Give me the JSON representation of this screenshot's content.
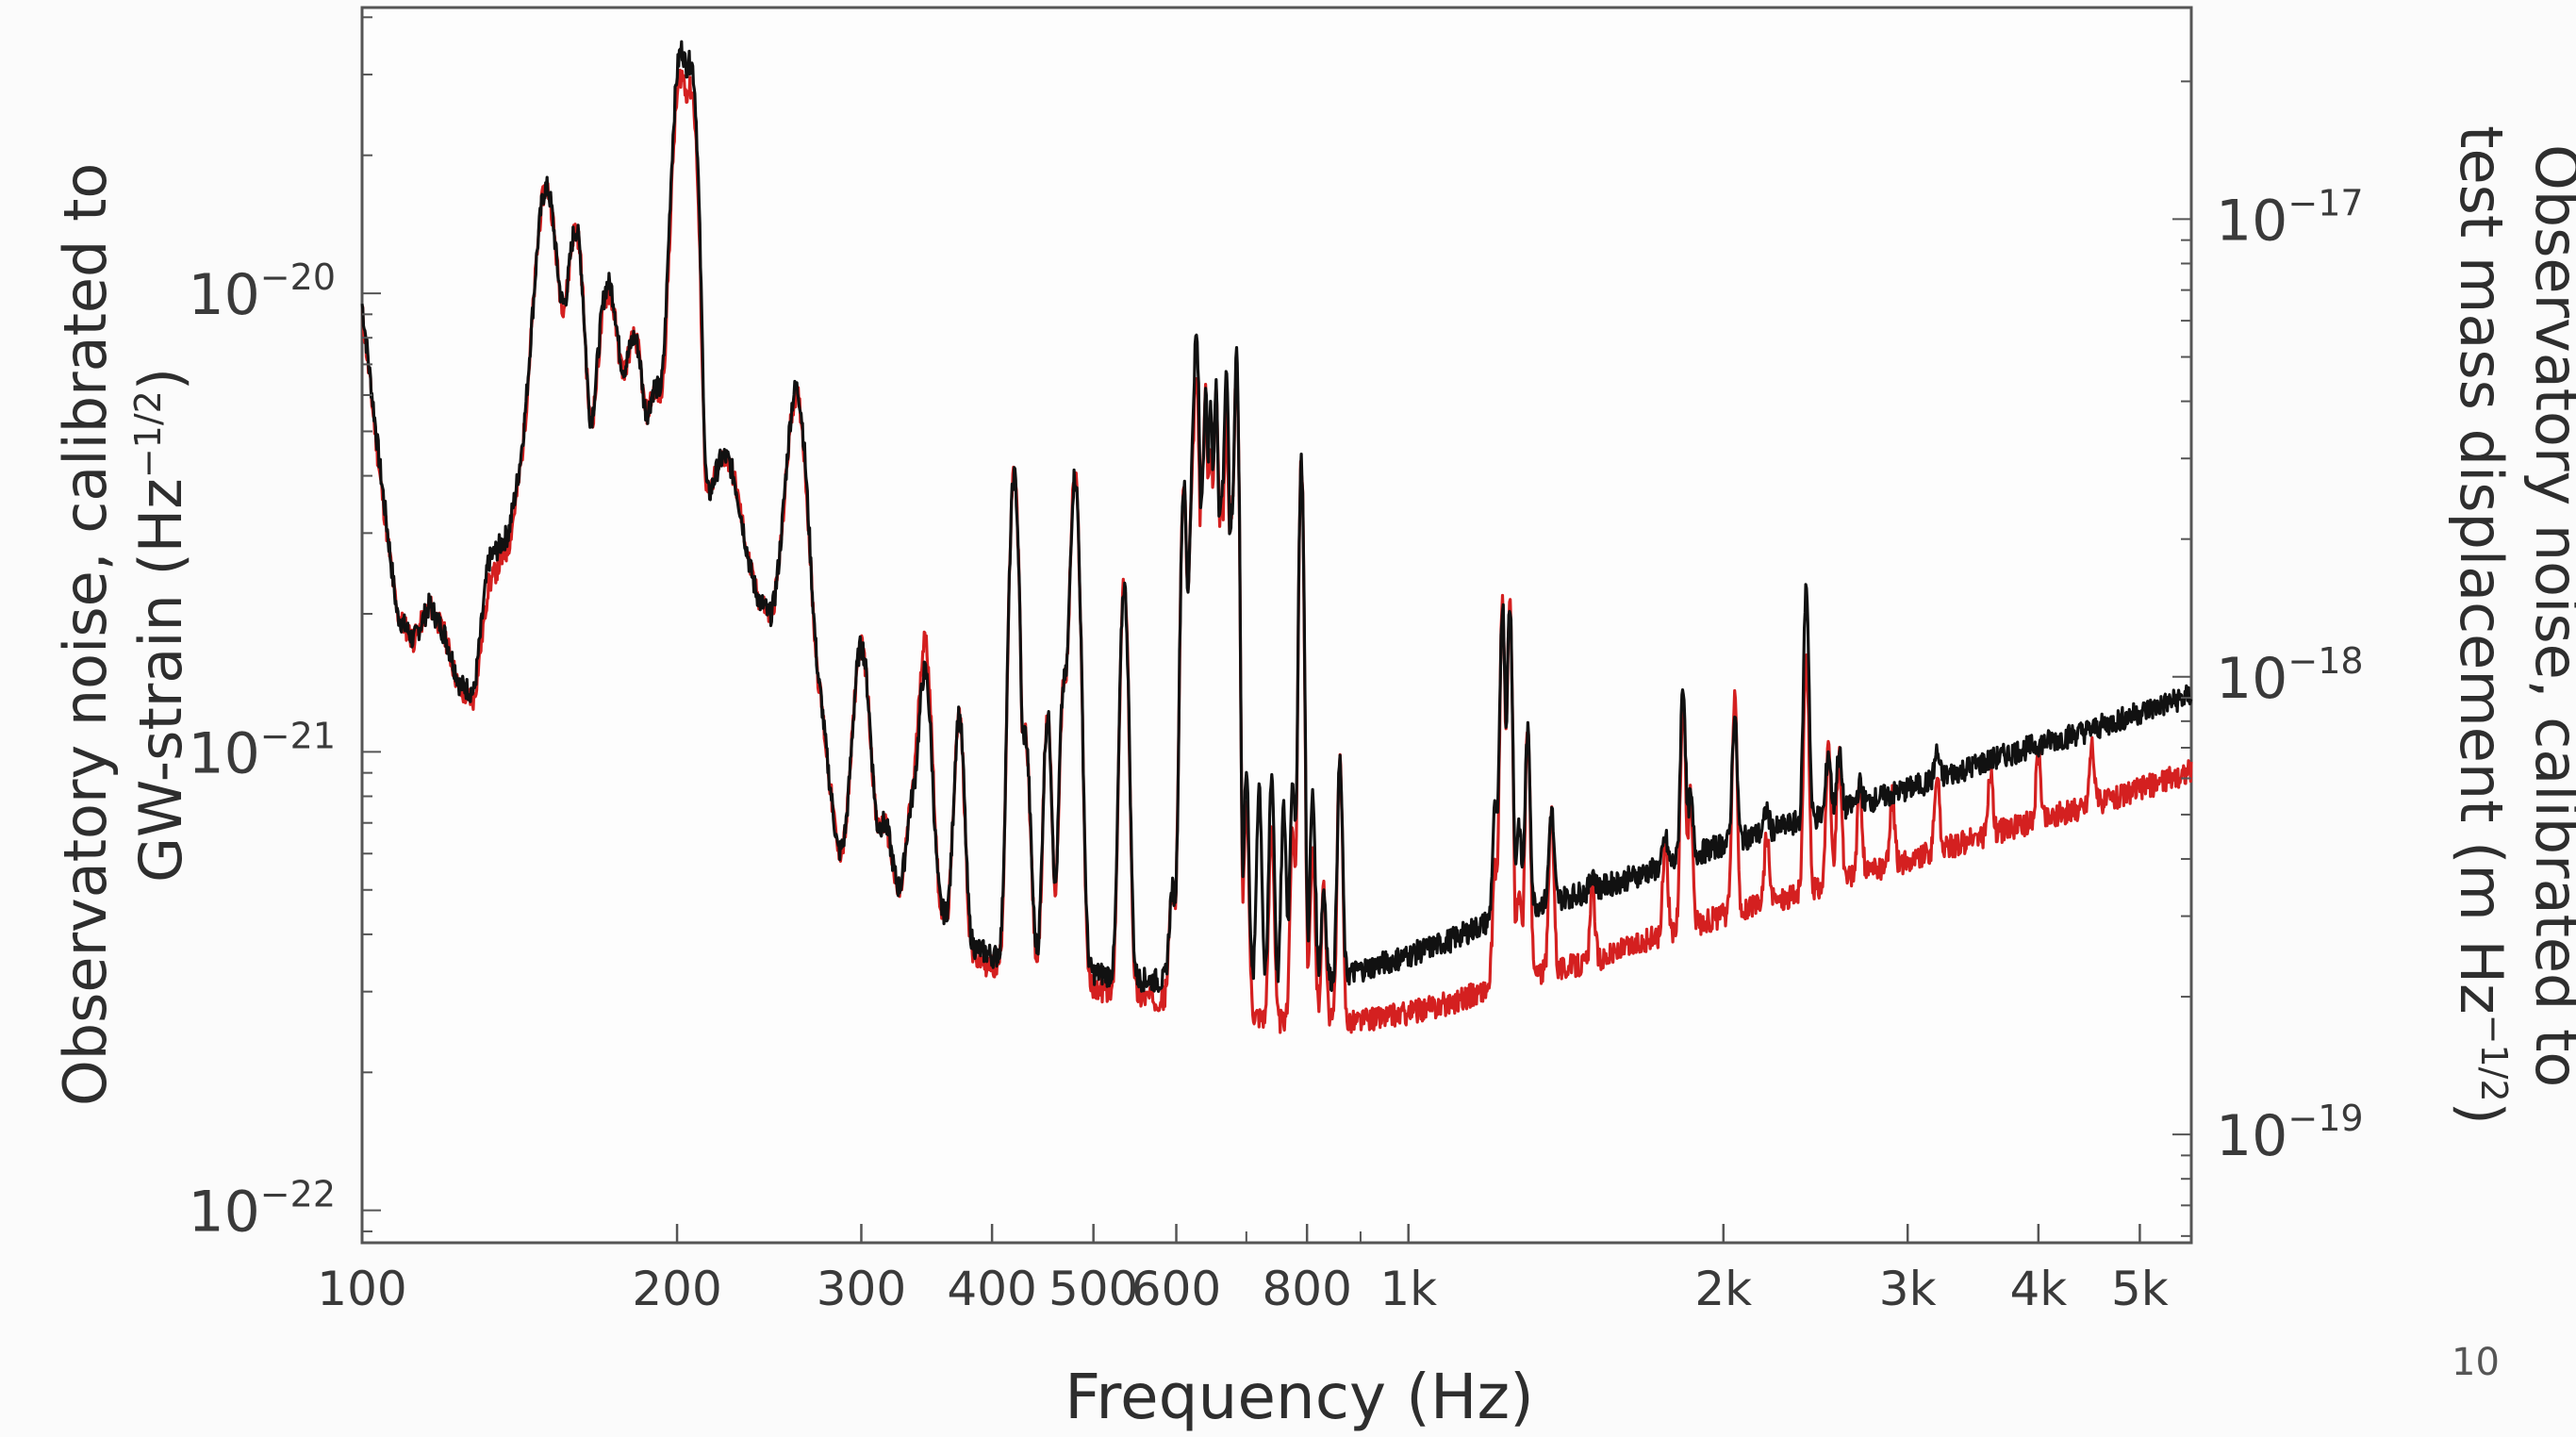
{
  "page_number": "10",
  "chart_data": {
    "type": "line",
    "xlabel": "Frequency (Hz)",
    "ylabel": "Observatory noise, calibrated to GW-strain (Hz⁻¹ᐟ²)",
    "ylabel_lines": [
      "Observatory noise, calibrated to",
      "GW-strain (Hz",
      "−1/2",
      ")"
    ],
    "y2label": "Observatory noise, calibrated to test mass displacement (m Hz⁻¹ᐟ²)",
    "y2label_lines": [
      "Observatory noise, calibrated to",
      "test mass displacement (m Hz",
      "−1/2",
      ")"
    ],
    "xscale": "log",
    "yscale": "log",
    "xlim": [
      100,
      5600
    ],
    "ylim": [
      8.5e-23,
      4.2e-20
    ],
    "y2lim": [
      5.8e-20,
      2.9e-17
    ],
    "grid": false,
    "x_ticks": [
      {
        "v": 100,
        "label": "100"
      },
      {
        "v": 200,
        "label": "200"
      },
      {
        "v": 300,
        "label": "300"
      },
      {
        "v": 400,
        "label": "400"
      },
      {
        "v": 500,
        "label": "500"
      },
      {
        "v": 600,
        "label": "600"
      },
      {
        "v": 800,
        "label": "800"
      },
      {
        "v": 1000,
        "label": "1k"
      },
      {
        "v": 2000,
        "label": "2k"
      },
      {
        "v": 3000,
        "label": "3k"
      },
      {
        "v": 4000,
        "label": "4k"
      },
      {
        "v": 5000,
        "label": "5k"
      }
    ],
    "x_minor_ticks": [
      700,
      900
    ],
    "y_ticks": [
      {
        "v": 1e-20,
        "base": "10",
        "exp": "−20"
      },
      {
        "v": 1e-21,
        "base": "10",
        "exp": "−21"
      },
      {
        "v": 1e-22,
        "base": "10",
        "exp": "−22"
      }
    ],
    "y2_ticks": [
      {
        "v": 1e-17,
        "base": "10",
        "exp": "−17"
      },
      {
        "v": 1e-18,
        "base": "10",
        "exp": "−18"
      },
      {
        "v": 1e-19,
        "base": "10",
        "exp": "−19"
      }
    ],
    "series": [
      {
        "color": "#d42020",
        "baseline": [
          [
            100,
            9.2e-21
          ],
          [
            104,
            4e-21
          ],
          [
            108,
            2e-21
          ],
          [
            112,
            1.75e-21
          ],
          [
            116,
            2.1e-21
          ],
          [
            120,
            1.8e-21
          ],
          [
            124,
            1.35e-21
          ],
          [
            128,
            1.3e-21
          ],
          [
            132,
            2.3e-21
          ],
          [
            138,
            2.8e-21
          ],
          [
            145,
            5.4e-21
          ],
          [
            155,
            6.5e-21
          ],
          [
            160,
            5e-21
          ],
          [
            165,
            2.4e-21
          ],
          [
            175,
            3e-21
          ],
          [
            185,
            1.6e-21
          ],
          [
            195,
            1.2e-21
          ],
          [
            205,
            1.6e-21
          ],
          [
            215,
            2.2e-21
          ],
          [
            225,
            2e-21
          ],
          [
            240,
            2e-21
          ],
          [
            250,
            1.5e-21
          ],
          [
            262,
            1.35e-21
          ],
          [
            275,
            1.2e-21
          ],
          [
            285,
            6e-22
          ],
          [
            295,
            5.2e-22
          ],
          [
            310,
            5.6e-22
          ],
          [
            320,
            4.6e-22
          ],
          [
            330,
            4.2e-22
          ],
          [
            345,
            4.1e-22
          ],
          [
            360,
            4.3e-22
          ],
          [
            380,
            3.6e-22
          ],
          [
            400,
            3.4e-22
          ],
          [
            450,
            3.15e-22
          ],
          [
            500,
            3.05e-22
          ],
          [
            550,
            2.95e-22
          ],
          [
            600,
            2.85e-22
          ],
          [
            650,
            2.75e-22
          ],
          [
            700,
            2.75e-22
          ],
          [
            740,
            2.6e-22
          ],
          [
            780,
            2.55e-22
          ],
          [
            800,
            2.55e-22
          ],
          [
            850,
            2.6e-22
          ],
          [
            900,
            2.6e-22
          ],
          [
            1000,
            2.7e-22
          ],
          [
            1100,
            2.85e-22
          ],
          [
            1200,
            3.05e-22
          ],
          [
            1300,
            3.25e-22
          ],
          [
            1500,
            3.5e-22
          ],
          [
            1700,
            3.9e-22
          ],
          [
            2000,
            4.4e-22
          ],
          [
            2500,
            5.1e-22
          ],
          [
            3000,
            5.8e-22
          ],
          [
            3500,
            6.5e-22
          ],
          [
            4000,
            7.1e-22
          ],
          [
            4500,
            7.7e-22
          ],
          [
            5000,
            8.3e-22
          ],
          [
            5600,
            9.1e-22
          ]
        ],
        "peaks": [
          [
            150,
            1.7e-20,
            0.012
          ],
          [
            160,
            1.38e-20,
            0.01
          ],
          [
            172,
            1e-20,
            0.014
          ],
          [
            182,
            8e-21,
            0.014
          ],
          [
            190,
            6e-21,
            0.01
          ],
          [
            202,
            3e-20,
            0.012
          ],
          [
            206,
            2.8e-20,
            0.008
          ],
          [
            222,
            4.4e-21,
            0.02
          ],
          [
            240,
            2.1e-21,
            0.01
          ],
          [
            250,
            2e-21,
            0.01
          ],
          [
            260,
            6e-21,
            0.012
          ],
          [
            300,
            1.7e-21,
            0.01
          ],
          [
            315,
            7e-22,
            0.01
          ],
          [
            335,
            7.2e-22,
            0.008
          ],
          [
            345,
            1.75e-21,
            0.008
          ],
          [
            372,
            1.2e-21,
            0.006
          ],
          [
            420,
            4e-21,
            0.006
          ],
          [
            430,
            1.1e-21,
            0.006
          ],
          [
            452,
            1.2e-21,
            0.005
          ],
          [
            468,
            1.3e-21,
            0.005
          ],
          [
            480,
            4e-21,
            0.006
          ],
          [
            535,
            2.3e-21,
            0.005
          ],
          [
            595,
            5e-22,
            0.004
          ],
          [
            610,
            3.8e-21,
            0.004
          ],
          [
            620,
            2.6e-21,
            0.004
          ],
          [
            627,
            6.5e-21,
            0.004
          ],
          [
            633,
            3.2e-21,
            0.004
          ],
          [
            640,
            6e-21,
            0.003
          ],
          [
            647,
            4.5e-21,
            0.003
          ],
          [
            655,
            6.2e-21,
            0.003
          ],
          [
            662,
            3.5e-21,
            0.003
          ],
          [
            670,
            5.5e-21,
            0.003
          ],
          [
            677,
            3e-21,
            0.003
          ],
          [
            685,
            7e-21,
            0.003
          ],
          [
            700,
            7.5e-22,
            0.003
          ],
          [
            740,
            7e-22,
            0.003
          ],
          [
            775,
            6.8e-22,
            0.003
          ],
          [
            790,
            4.3e-21,
            0.003
          ],
          [
            810,
            6e-22,
            0.003
          ],
          [
            830,
            5e-22,
            0.003
          ],
          [
            860,
            9.5e-22,
            0.003
          ],
          [
            1210,
            5.5e-22,
            0.003
          ],
          [
            1230,
            2.1e-21,
            0.003
          ],
          [
            1250,
            2.1e-21,
            0.003
          ],
          [
            1275,
            5e-22,
            0.003
          ],
          [
            1300,
            1.1e-21,
            0.003
          ],
          [
            1370,
            7.5e-22,
            0.003
          ],
          [
            1500,
            5e-22,
            0.003
          ],
          [
            1760,
            6.5e-22,
            0.003
          ],
          [
            1830,
            1.3e-21,
            0.003
          ],
          [
            1860,
            8e-22,
            0.003
          ],
          [
            2050,
            1.3e-21,
            0.003
          ],
          [
            2200,
            6.6e-22,
            0.003
          ],
          [
            2400,
            1.6e-21,
            0.003
          ],
          [
            2520,
            1e-21,
            0.003
          ],
          [
            2580,
            1e-21,
            0.003
          ],
          [
            2700,
            8.5e-22,
            0.003
          ],
          [
            2900,
            8e-22,
            0.003
          ],
          [
            3200,
            9e-22,
            0.003
          ],
          [
            3600,
            9e-22,
            0.003
          ],
          [
            4000,
            1e-21,
            0.003
          ],
          [
            4500,
            1.05e-21,
            0.003
          ]
        ],
        "noise_seed": 11
      },
      {
        "color": "#111111",
        "baseline": [
          [
            100,
            9.5e-21
          ],
          [
            104,
            4.2e-21
          ],
          [
            108,
            2e-21
          ],
          [
            112,
            1.75e-21
          ],
          [
            116,
            2.1e-21
          ],
          [
            120,
            1.8e-21
          ],
          [
            124,
            1.4e-21
          ],
          [
            128,
            1.35e-21
          ],
          [
            132,
            2.6e-21
          ],
          [
            138,
            3e-21
          ],
          [
            145,
            5.6e-21
          ],
          [
            155,
            6.6e-21
          ],
          [
            160,
            5e-21
          ],
          [
            165,
            2.4e-21
          ],
          [
            175,
            3e-21
          ],
          [
            185,
            1.6e-21
          ],
          [
            195,
            1.2e-21
          ],
          [
            205,
            1.6e-21
          ],
          [
            215,
            2.2e-21
          ],
          [
            225,
            2e-21
          ],
          [
            240,
            2e-21
          ],
          [
            250,
            1.5e-21
          ],
          [
            262,
            1.4e-21
          ],
          [
            275,
            1.2e-21
          ],
          [
            285,
            6e-22
          ],
          [
            295,
            5.4e-22
          ],
          [
            310,
            5.8e-22
          ],
          [
            320,
            4.8e-22
          ],
          [
            330,
            4.4e-22
          ],
          [
            345,
            4.3e-22
          ],
          [
            360,
            4.4e-22
          ],
          [
            380,
            3.8e-22
          ],
          [
            400,
            3.6e-22
          ],
          [
            450,
            3.4e-22
          ],
          [
            500,
            3.3e-22
          ],
          [
            550,
            3.2e-22
          ],
          [
            600,
            3.15e-22
          ],
          [
            650,
            3.1e-22
          ],
          [
            700,
            3.1e-22
          ],
          [
            740,
            3.05e-22
          ],
          [
            780,
            3.05e-22
          ],
          [
            800,
            3.1e-22
          ],
          [
            850,
            3.2e-22
          ],
          [
            900,
            3.35e-22
          ],
          [
            1000,
            3.6e-22
          ],
          [
            1100,
            3.9e-22
          ],
          [
            1200,
            4.3e-22
          ],
          [
            1300,
            4.6e-22
          ],
          [
            1500,
            5e-22
          ],
          [
            1700,
            5.5e-22
          ],
          [
            2000,
            6.3e-22
          ],
          [
            2500,
            7.3e-22
          ],
          [
            3000,
            8.3e-22
          ],
          [
            3500,
            9.4e-22
          ],
          [
            4000,
            1.04e-21
          ],
          [
            4500,
            1.12e-21
          ],
          [
            5000,
            1.22e-21
          ],
          [
            5600,
            1.33e-21
          ]
        ],
        "peaks": [
          [
            150,
            1.7e-20,
            0.012
          ],
          [
            160,
            1.38e-20,
            0.01
          ],
          [
            172,
            1.05e-20,
            0.014
          ],
          [
            182,
            8e-21,
            0.014
          ],
          [
            190,
            6e-21,
            0.01
          ],
          [
            202,
            3.4e-20,
            0.012
          ],
          [
            206,
            3.2e-20,
            0.008
          ],
          [
            222,
            4.4e-21,
            0.02
          ],
          [
            240,
            2.1e-21,
            0.01
          ],
          [
            250,
            2e-21,
            0.01
          ],
          [
            260,
            6.2e-21,
            0.012
          ],
          [
            300,
            1.7e-21,
            0.01
          ],
          [
            315,
            7e-22,
            0.01
          ],
          [
            335,
            7.2e-22,
            0.008
          ],
          [
            345,
            1.5e-21,
            0.008
          ],
          [
            372,
            1.2e-21,
            0.006
          ],
          [
            420,
            4e-21,
            0.006
          ],
          [
            430,
            1.1e-21,
            0.006
          ],
          [
            452,
            1.2e-21,
            0.005
          ],
          [
            468,
            1.3e-21,
            0.005
          ],
          [
            480,
            4e-21,
            0.006
          ],
          [
            535,
            2.3e-21,
            0.005
          ],
          [
            595,
            5e-22,
            0.004
          ],
          [
            610,
            3.8e-21,
            0.004
          ],
          [
            620,
            2.6e-21,
            0.004
          ],
          [
            627,
            8e-21,
            0.004
          ],
          [
            633,
            3.2e-21,
            0.004
          ],
          [
            640,
            6e-21,
            0.003
          ],
          [
            647,
            5.5e-21,
            0.003
          ],
          [
            655,
            6.2e-21,
            0.003
          ],
          [
            662,
            3.5e-21,
            0.003
          ],
          [
            670,
            7e-21,
            0.003
          ],
          [
            677,
            3e-21,
            0.003
          ],
          [
            685,
            7.2e-21,
            0.003
          ],
          [
            700,
            9e-22,
            0.003
          ],
          [
            720,
            8.5e-22,
            0.003
          ],
          [
            740,
            9e-22,
            0.003
          ],
          [
            760,
            7.5e-22,
            0.003
          ],
          [
            775,
            8.8e-22,
            0.003
          ],
          [
            790,
            4.3e-21,
            0.003
          ],
          [
            810,
            8e-22,
            0.003
          ],
          [
            830,
            5e-22,
            0.003
          ],
          [
            860,
            9.5e-22,
            0.003
          ],
          [
            1210,
            7.5e-22,
            0.003
          ],
          [
            1230,
            2.1e-21,
            0.003
          ],
          [
            1250,
            2.1e-21,
            0.003
          ],
          [
            1275,
            7e-22,
            0.003
          ],
          [
            1300,
            1.1e-21,
            0.003
          ],
          [
            1370,
            7.5e-22,
            0.003
          ],
          [
            1500,
            5.5e-22,
            0.003
          ],
          [
            1760,
            6.5e-22,
            0.003
          ],
          [
            1830,
            1.4e-21,
            0.003
          ],
          [
            1860,
            8e-22,
            0.003
          ],
          [
            2050,
            1.2e-21,
            0.003
          ],
          [
            2200,
            7.5e-22,
            0.003
          ],
          [
            2400,
            2.3e-21,
            0.003
          ],
          [
            2520,
            1e-21,
            0.003
          ],
          [
            2580,
            1e-21,
            0.003
          ],
          [
            2700,
            8.5e-22,
            0.003
          ],
          [
            3200,
            1e-21,
            0.003
          ]
        ],
        "noise_seed": 7
      }
    ]
  }
}
